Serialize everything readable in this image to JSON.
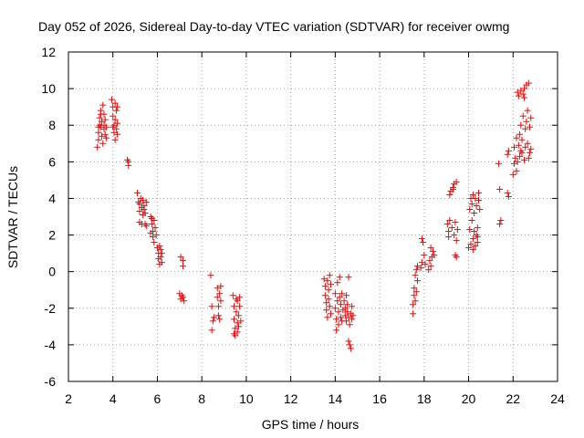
{
  "chart_data": {
    "type": "scatter",
    "title": "Day 052 of 2026, Sidereal Day-to-day VTEC variation (SDTVAR) for receiver owmg",
    "xlabel": "GPS time / hours",
    "ylabel": "SDTVAR / TECUs",
    "xlim": [
      2,
      24
    ],
    "ylim": [
      -6,
      12
    ],
    "xticks": [
      "2",
      "4",
      "6",
      "8",
      "10",
      "12",
      "14",
      "16",
      "18",
      "20",
      "22",
      "24"
    ],
    "yticks": [
      "-6",
      "-4",
      "-2",
      "0",
      "2",
      "4",
      "6",
      "8",
      "10",
      "12"
    ],
    "grid": true,
    "marker": "plus",
    "color": "#ff0000",
    "series": [
      {
        "name": "SDTVAR",
        "points": [
          [
            3.3,
            6.8
          ],
          [
            3.35,
            7.2
          ],
          [
            3.35,
            7.6
          ],
          [
            3.4,
            8.0
          ],
          [
            3.4,
            8.4
          ],
          [
            3.45,
            7.9
          ],
          [
            3.45,
            8.8
          ],
          [
            3.5,
            7.4
          ],
          [
            3.5,
            8.2
          ],
          [
            3.55,
            9.1
          ],
          [
            3.55,
            7.0
          ],
          [
            3.6,
            7.8
          ],
          [
            3.6,
            8.6
          ],
          [
            3.65,
            7.5
          ],
          [
            3.65,
            8.3
          ],
          [
            3.7,
            7.9
          ],
          [
            3.7,
            7.3
          ],
          [
            3.35,
            7.9
          ],
          [
            3.45,
            8.6
          ],
          [
            3.6,
            8.0
          ],
          [
            3.95,
            9.4
          ],
          [
            4.0,
            9.0
          ],
          [
            4.0,
            8.5
          ],
          [
            4.05,
            8.0
          ],
          [
            4.05,
            7.6
          ],
          [
            4.1,
            9.2
          ],
          [
            4.1,
            8.3
          ],
          [
            4.15,
            7.8
          ],
          [
            4.15,
            8.8
          ],
          [
            4.2,
            7.5
          ],
          [
            4.2,
            9.0
          ],
          [
            4.0,
            7.9
          ],
          [
            4.1,
            7.2
          ],
          [
            4.2,
            8.1
          ],
          [
            4.65,
            6.1
          ],
          [
            4.7,
            5.8
          ],
          [
            4.7,
            6.0
          ],
          [
            5.1,
            4.3
          ],
          [
            5.15,
            3.8
          ],
          [
            5.2,
            3.3
          ],
          [
            5.2,
            2.7
          ],
          [
            5.25,
            4.0
          ],
          [
            5.3,
            3.5
          ],
          [
            5.3,
            2.6
          ],
          [
            5.35,
            3.9
          ],
          [
            5.35,
            3.1
          ],
          [
            5.4,
            3.6
          ],
          [
            5.45,
            3.2
          ],
          [
            5.45,
            2.6
          ],
          [
            5.5,
            3.8
          ],
          [
            5.5,
            2.5
          ],
          [
            5.2,
            3.7
          ],
          [
            5.4,
            3.4
          ],
          [
            5.7,
            3.0
          ],
          [
            5.75,
            2.6
          ],
          [
            5.8,
            2.2
          ],
          [
            5.8,
            1.9
          ],
          [
            5.85,
            2.8
          ],
          [
            5.85,
            1.6
          ],
          [
            5.9,
            2.4
          ],
          [
            5.7,
            2.1
          ],
          [
            5.95,
            2.0
          ],
          [
            5.75,
            2.9
          ],
          [
            6.0,
            1.3
          ],
          [
            6.05,
            1.0
          ],
          [
            6.05,
            0.7
          ],
          [
            6.1,
            0.4
          ],
          [
            6.15,
            1.2
          ],
          [
            6.15,
            0.8
          ],
          [
            6.2,
            1.0
          ],
          [
            6.1,
            1.4
          ],
          [
            6.2,
            0.5
          ],
          [
            7.0,
            -1.2
          ],
          [
            7.05,
            -1.5
          ],
          [
            7.1,
            -1.3
          ],
          [
            7.15,
            -1.4
          ],
          [
            7.05,
            0.8
          ],
          [
            7.15,
            0.6
          ],
          [
            7.15,
            0.3
          ],
          [
            7.2,
            -1.6
          ],
          [
            8.4,
            -0.2
          ],
          [
            8.45,
            -1.9
          ],
          [
            8.5,
            -2.7
          ],
          [
            8.45,
            -3.2
          ],
          [
            8.55,
            -2.5
          ],
          [
            8.7,
            -0.9
          ],
          [
            8.7,
            -1.4
          ],
          [
            8.75,
            -1.9
          ],
          [
            8.75,
            -2.4
          ],
          [
            8.8,
            -1.2
          ],
          [
            8.8,
            -2.6
          ],
          [
            8.85,
            -1.6
          ],
          [
            8.85,
            -0.8
          ],
          [
            9.4,
            -1.3
          ],
          [
            9.45,
            -1.9
          ],
          [
            9.45,
            -2.6
          ],
          [
            9.5,
            -3.1
          ],
          [
            9.5,
            -3.5
          ],
          [
            9.55,
            -1.5
          ],
          [
            9.55,
            -2.2
          ],
          [
            9.6,
            -2.8
          ],
          [
            9.6,
            -1.6
          ],
          [
            9.65,
            -2.4
          ],
          [
            9.65,
            -3.0
          ],
          [
            9.7,
            -1.4
          ],
          [
            9.7,
            -1.9
          ],
          [
            9.75,
            -2.7
          ],
          [
            9.45,
            -3.4
          ],
          [
            9.6,
            -3.3
          ],
          [
            13.5,
            -0.4
          ],
          [
            13.55,
            -0.8
          ],
          [
            13.55,
            -1.3
          ],
          [
            13.6,
            -1.7
          ],
          [
            13.6,
            -2.1
          ],
          [
            13.65,
            -2.5
          ],
          [
            13.65,
            -0.5
          ],
          [
            13.7,
            -1.0
          ],
          [
            13.7,
            -1.5
          ],
          [
            13.75,
            -1.9
          ],
          [
            13.75,
            -0.2
          ],
          [
            13.8,
            -0.7
          ],
          [
            13.8,
            -2.3
          ],
          [
            14.0,
            -1.2
          ],
          [
            14.0,
            -2.0
          ],
          [
            14.05,
            -2.6
          ],
          [
            14.05,
            -3.2
          ],
          [
            14.1,
            -1.6
          ],
          [
            14.1,
            -0.6
          ],
          [
            14.15,
            -2.2
          ],
          [
            14.15,
            -2.9
          ],
          [
            14.2,
            -1.4
          ],
          [
            14.2,
            -0.3
          ],
          [
            14.25,
            -2.5
          ],
          [
            14.25,
            -1.8
          ],
          [
            14.3,
            -1.2
          ],
          [
            14.3,
            -2.7
          ],
          [
            14.35,
            -2.1
          ],
          [
            14.4,
            -1.6
          ],
          [
            14.45,
            -2.0
          ],
          [
            14.45,
            -2.4
          ],
          [
            14.5,
            -1.3
          ],
          [
            14.5,
            -2.7
          ],
          [
            14.55,
            -2.2
          ],
          [
            14.55,
            -1.8
          ],
          [
            14.6,
            -2.5
          ],
          [
            14.6,
            -3.8
          ],
          [
            14.65,
            -4.0
          ],
          [
            14.65,
            -2.9
          ],
          [
            14.7,
            -2.3
          ],
          [
            14.7,
            -4.2
          ],
          [
            14.75,
            -1.9
          ],
          [
            14.75,
            -2.6
          ],
          [
            14.8,
            -2.4
          ],
          [
            14.6,
            -0.3
          ],
          [
            17.5,
            -2.3
          ],
          [
            17.5,
            -1.8
          ],
          [
            17.55,
            -1.3
          ],
          [
            17.55,
            -0.9
          ],
          [
            17.6,
            -1.6
          ],
          [
            17.6,
            -0.2
          ],
          [
            17.65,
            0.1
          ],
          [
            17.65,
            -1.1
          ],
          [
            17.7,
            0.3
          ],
          [
            17.7,
            -0.5
          ],
          [
            17.85,
            0.2
          ],
          [
            17.9,
            0.5
          ],
          [
            17.9,
            1.8
          ],
          [
            17.95,
            1.6
          ],
          [
            18.0,
            0.9
          ],
          [
            18.05,
            0.4
          ],
          [
            18.2,
            0.1
          ],
          [
            18.25,
            0.6
          ],
          [
            18.3,
            1.3
          ],
          [
            18.35,
            0.8
          ],
          [
            18.4,
            1.1
          ],
          [
            18.45,
            0.9
          ],
          [
            18.3,
            0.3
          ],
          [
            19.05,
            2.6
          ],
          [
            19.1,
            2.2
          ],
          [
            19.1,
            1.9
          ],
          [
            19.15,
            2.8
          ],
          [
            19.15,
            4.2
          ],
          [
            19.2,
            4.4
          ],
          [
            19.25,
            2.4
          ],
          [
            19.3,
            4.6
          ],
          [
            19.35,
            2.0
          ],
          [
            19.35,
            4.8
          ],
          [
            19.4,
            2.7
          ],
          [
            19.45,
            1.7
          ],
          [
            19.45,
            4.9
          ],
          [
            19.5,
            2.3
          ],
          [
            19.4,
            0.9
          ],
          [
            19.45,
            0.8
          ],
          [
            19.3,
            4.5
          ],
          [
            20.0,
            1.3
          ],
          [
            20.05,
            2.3
          ],
          [
            20.05,
            3.4
          ],
          [
            20.1,
            4.0
          ],
          [
            20.1,
            1.5
          ],
          [
            20.15,
            2.8
          ],
          [
            20.15,
            3.7
          ],
          [
            20.2,
            1.8
          ],
          [
            20.2,
            4.2
          ],
          [
            20.25,
            2.2
          ],
          [
            20.25,
            3.2
          ],
          [
            20.3,
            1.4
          ],
          [
            20.3,
            4.0
          ],
          [
            20.35,
            2.0
          ],
          [
            20.35,
            3.6
          ],
          [
            20.4,
            1.6
          ],
          [
            20.4,
            2.4
          ],
          [
            20.45,
            3.9
          ],
          [
            20.45,
            4.3
          ],
          [
            20.5,
            3.4
          ],
          [
            20.2,
            1.2
          ],
          [
            20.4,
            1.9
          ],
          [
            21.35,
            5.9
          ],
          [
            21.4,
            4.5
          ],
          [
            21.45,
            2.8
          ],
          [
            21.4,
            2.6
          ],
          [
            21.75,
            6.4
          ],
          [
            21.8,
            6.6
          ],
          [
            21.75,
            4.3
          ],
          [
            21.8,
            4.1
          ],
          [
            22.0,
            5.3
          ],
          [
            22.05,
            5.9
          ],
          [
            22.05,
            6.8
          ],
          [
            22.1,
            6.2
          ],
          [
            22.15,
            7.3
          ],
          [
            22.2,
            6.0
          ],
          [
            22.2,
            9.8
          ],
          [
            22.25,
            6.9
          ],
          [
            22.25,
            9.6
          ],
          [
            22.3,
            7.5
          ],
          [
            22.3,
            6.3
          ],
          [
            22.35,
            9.9
          ],
          [
            22.35,
            8.0
          ],
          [
            22.4,
            6.5
          ],
          [
            22.4,
            7.2
          ],
          [
            22.45,
            9.7
          ],
          [
            22.45,
            8.5
          ],
          [
            22.5,
            10.0
          ],
          [
            22.5,
            6.1
          ],
          [
            22.55,
            7.8
          ],
          [
            22.55,
            6.8
          ],
          [
            22.6,
            10.2
          ],
          [
            22.6,
            8.2
          ],
          [
            22.65,
            7.0
          ],
          [
            22.65,
            8.8
          ],
          [
            22.7,
            10.3
          ],
          [
            22.7,
            6.2
          ],
          [
            22.75,
            7.9
          ],
          [
            22.75,
            6.5
          ],
          [
            22.8,
            8.4
          ],
          [
            22.8,
            6.7
          ],
          [
            22.5,
            9.5
          ],
          [
            22.15,
            5.5
          ],
          [
            22.35,
            6.6
          ]
        ]
      }
    ]
  }
}
